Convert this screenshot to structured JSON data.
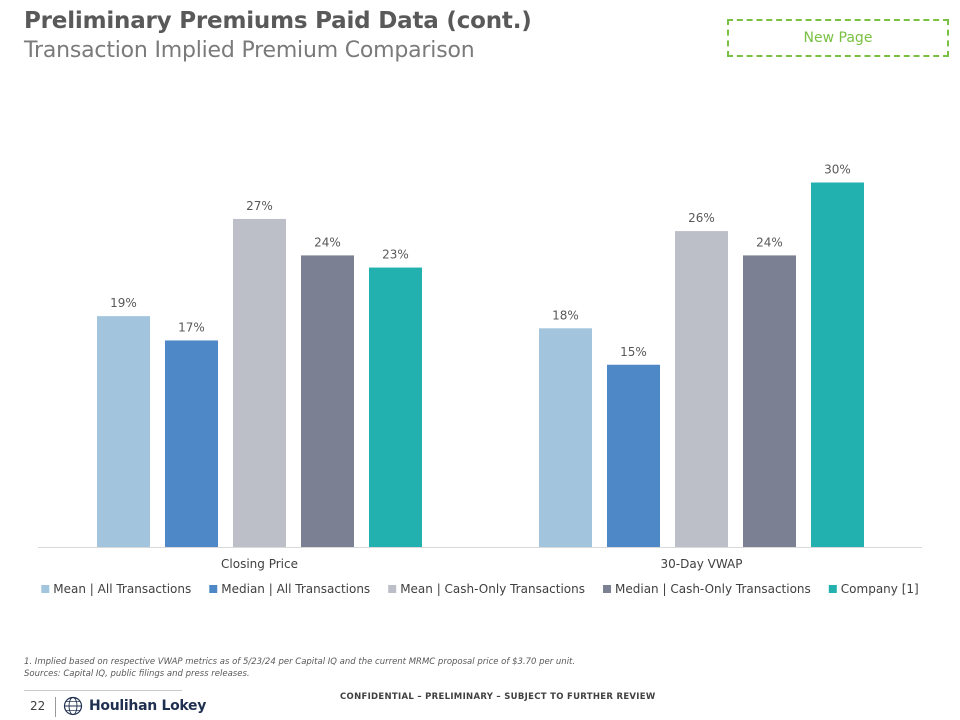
{
  "header": {
    "title": "Preliminary Premiums Paid Data (cont.)",
    "subtitle": "Transaction Implied Premium Comparison",
    "new_page_label": "New Page"
  },
  "colors": {
    "mean_all": "#a2c4dc",
    "median_all": "#4e88c7",
    "mean_cash": "#bcbfc7",
    "median_cash": "#7b8193",
    "company": "#23b1b0",
    "new_page_border": "#7ac143"
  },
  "chart_data": {
    "type": "bar",
    "categories": [
      "Closing Price",
      "30-Day VWAP"
    ],
    "series": [
      {
        "name": "Mean | All Transactions",
        "values": [
          19,
          18
        ],
        "labels": [
          "19%",
          "18%"
        ]
      },
      {
        "name": "Median | All Transactions",
        "values": [
          17,
          15
        ],
        "labels": [
          "17%",
          "15%"
        ]
      },
      {
        "name": "Mean | Cash-Only Transactions",
        "values": [
          27,
          26
        ],
        "labels": [
          "27%",
          "26%"
        ]
      },
      {
        "name": "Median | Cash-Only Transactions",
        "values": [
          24,
          24
        ],
        "labels": [
          "24%",
          "24%"
        ]
      },
      {
        "name": "Company [1]",
        "values": [
          23,
          30
        ],
        "labels": [
          "23%",
          "30%"
        ]
      }
    ],
    "title": "Transaction Implied Premium Comparison",
    "xlabel": "",
    "ylabel": "",
    "ylim": [
      0,
      30
    ],
    "grid": false,
    "legend": "bottom"
  },
  "footer": {
    "footnote": "1.   Implied based on respective VWAP metrics as of 5/23/24 per Capital IQ and the current MRMC proposal price of $3.70 per unit.",
    "sources": "Sources: Capital IQ, public filings and press releases.",
    "page_number": "22",
    "company_name": "Houlihan Lokey",
    "confidential": "CONFIDENTIAL – PRELIMINARY – SUBJECT TO FURTHER REVIEW"
  }
}
